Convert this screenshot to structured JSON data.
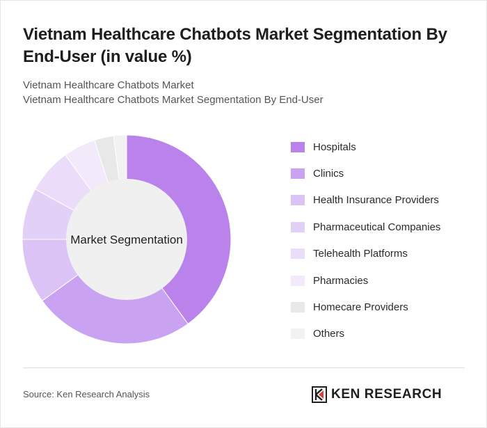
{
  "title": "Vietnam Healthcare Chatbots Market Segmentation By End-User (in value %)",
  "subtitles": [
    "Vietnam Healthcare Chatbots Market",
    "Vietnam Healthcare Chatbots Market Segmentation By End-User"
  ],
  "chart_data": {
    "type": "pie",
    "center_label": "Market Segmentation",
    "categories": [
      "Hospitals",
      "Clinics",
      "Health Insurance Providers",
      "Pharmaceutical Companies",
      "Telehealth Platforms",
      "Pharmacies",
      "Homecare Providers",
      "Others"
    ],
    "values": [
      40,
      25,
      10,
      8,
      7,
      5,
      3,
      2
    ],
    "colors": [
      "#b983eb",
      "#c9a2f2",
      "#dbc3f6",
      "#e3d0f7",
      "#ebdcf9",
      "#f2eafb",
      "#e8e8e8",
      "#f2f2f2"
    ],
    "legend_position": "right"
  },
  "footer": {
    "source": "Source: Ken Research Analysis",
    "logo_text": "KEN RESEARCH"
  }
}
